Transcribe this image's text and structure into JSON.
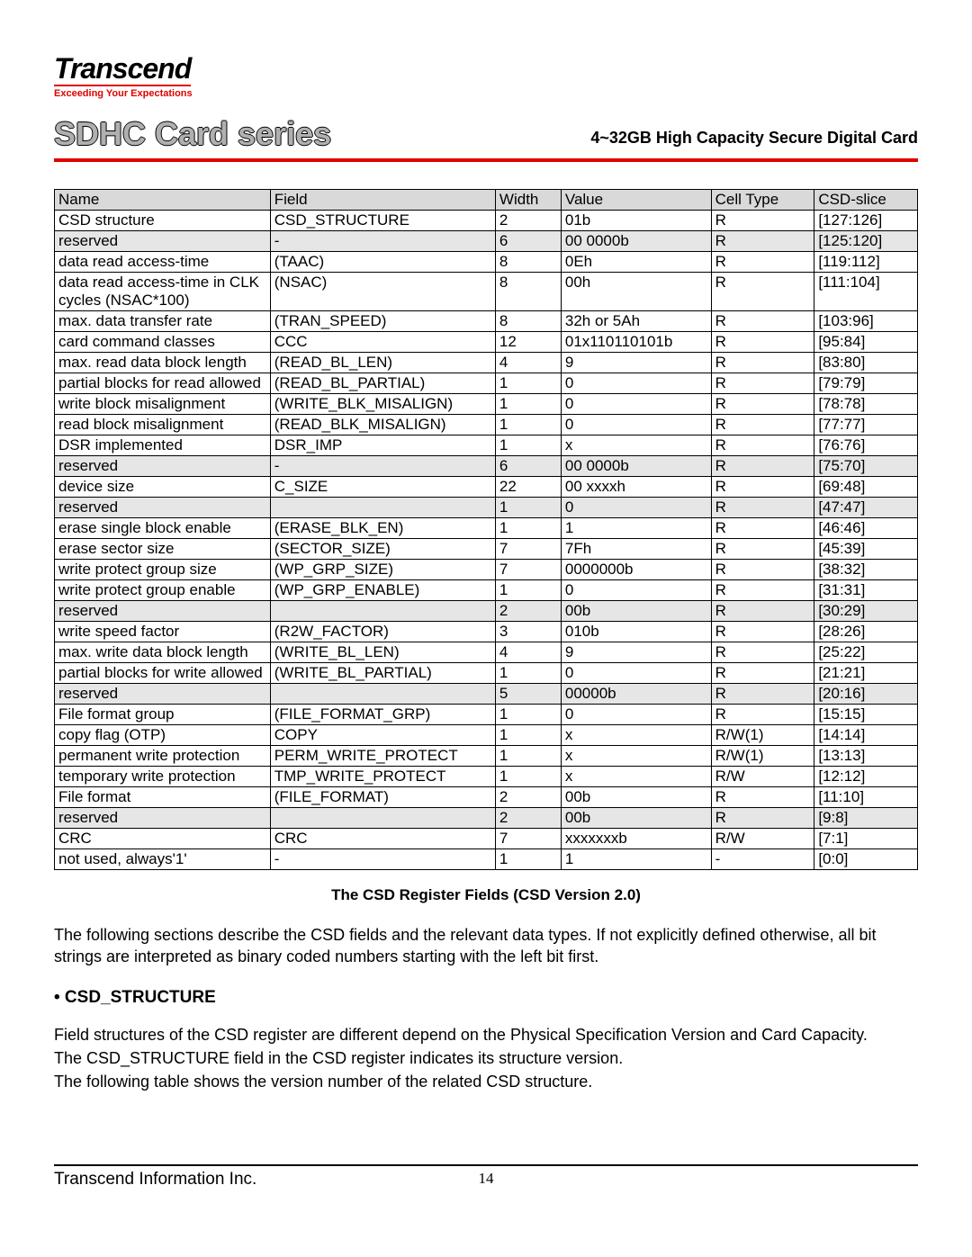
{
  "brand": {
    "name": "Transcend",
    "tagline": "Exceeding Your Expectations"
  },
  "header": {
    "series_title": "SDHC Card series",
    "subtitle": "4~32GB High Capacity Secure Digital Card"
  },
  "table": {
    "headers": [
      "Name",
      "Field",
      "Width",
      "Value",
      "Cell Type",
      "CSD-slice"
    ],
    "rows": [
      {
        "shaded": false,
        "cells": [
          "CSD structure",
          "CSD_STRUCTURE",
          "2",
          "01b",
          "R",
          "[127:126]"
        ]
      },
      {
        "shaded": true,
        "cells": [
          "reserved",
          "-",
          "6",
          "00 0000b",
          "R",
          "[125:120]"
        ]
      },
      {
        "shaded": false,
        "cells": [
          "data read access-time",
          "(TAAC)",
          "8",
          "0Eh",
          "R",
          "[119:112]"
        ]
      },
      {
        "shaded": false,
        "cells": [
          "data read access-time in CLK cycles (NSAC*100)",
          "(NSAC)",
          "8",
          "00h",
          "R",
          "[111:104]"
        ]
      },
      {
        "shaded": false,
        "cells": [
          "max. data transfer rate",
          "(TRAN_SPEED)",
          "8",
          "32h or 5Ah",
          "R",
          "[103:96]"
        ]
      },
      {
        "shaded": false,
        "cells": [
          "card command classes",
          "CCC",
          "12",
          "01x110110101b",
          "R",
          "[95:84]"
        ]
      },
      {
        "shaded": false,
        "cells": [
          "max. read data block length",
          "(READ_BL_LEN)",
          "4",
          "9",
          "R",
          "[83:80]"
        ]
      },
      {
        "shaded": false,
        "cells": [
          "partial blocks for read allowed",
          "(READ_BL_PARTIAL)",
          "1",
          "0",
          "R",
          "[79:79]"
        ]
      },
      {
        "shaded": false,
        "cells": [
          "write block misalignment",
          "(WRITE_BLK_MISALIGN)",
          "1",
          "0",
          "R",
          "[78:78]"
        ]
      },
      {
        "shaded": false,
        "cells": [
          "read block misalignment",
          "(READ_BLK_MISALIGN)",
          "1",
          "0",
          "R",
          "[77:77]"
        ]
      },
      {
        "shaded": false,
        "cells": [
          "DSR implemented",
          "DSR_IMP",
          "1",
          "x",
          "R",
          "[76:76]"
        ]
      },
      {
        "shaded": true,
        "cells": [
          "reserved",
          "-",
          "6",
          "00 0000b",
          "R",
          "[75:70]"
        ]
      },
      {
        "shaded": false,
        "cells": [
          "device size",
          "C_SIZE",
          "22",
          "00 xxxxh",
          "R",
          "[69:48]"
        ]
      },
      {
        "shaded": true,
        "cells": [
          "reserved",
          "",
          "1",
          "0",
          "R",
          "[47:47]"
        ]
      },
      {
        "shaded": false,
        "cells": [
          "erase single block enable",
          "(ERASE_BLK_EN)",
          "1",
          "1",
          "R",
          "[46:46]"
        ]
      },
      {
        "shaded": false,
        "cells": [
          "erase sector size",
          "(SECTOR_SIZE)",
          "7",
          "7Fh",
          "R",
          "[45:39]"
        ]
      },
      {
        "shaded": false,
        "cells": [
          "write protect group size",
          "(WP_GRP_SIZE)",
          "7",
          "0000000b",
          "R",
          "[38:32]"
        ]
      },
      {
        "shaded": false,
        "cells": [
          "write protect group enable",
          "(WP_GRP_ENABLE)",
          "1",
          "0",
          "R",
          "[31:31]"
        ]
      },
      {
        "shaded": true,
        "cells": [
          "reserved",
          "",
          "2",
          "00b",
          "R",
          "[30:29]"
        ]
      },
      {
        "shaded": false,
        "cells": [
          "write speed factor",
          "(R2W_FACTOR)",
          "3",
          "010b",
          "R",
          "[28:26]"
        ]
      },
      {
        "shaded": false,
        "cells": [
          "max. write data block length",
          "(WRITE_BL_LEN)",
          "4",
          "9",
          "R",
          "[25:22]"
        ]
      },
      {
        "shaded": false,
        "cells": [
          "partial blocks for write allowed",
          "(WRITE_BL_PARTIAL)",
          "1",
          "0",
          "R",
          "[21:21]"
        ]
      },
      {
        "shaded": true,
        "cells": [
          "reserved",
          "",
          "5",
          "00000b",
          "R",
          "[20:16]"
        ]
      },
      {
        "shaded": false,
        "cells": [
          "File format group",
          "(FILE_FORMAT_GRP)",
          "1",
          "0",
          "R",
          "[15:15]"
        ]
      },
      {
        "shaded": false,
        "cells": [
          "copy flag (OTP)",
          "COPY",
          "1",
          "x",
          "R/W(1)",
          "[14:14]"
        ]
      },
      {
        "shaded": false,
        "cells": [
          "permanent write protection",
          "PERM_WRITE_PROTECT",
          "1",
          "x",
          "R/W(1)",
          "[13:13]"
        ]
      },
      {
        "shaded": false,
        "cells": [
          "temporary write protection",
          "TMP_WRITE_PROTECT",
          "1",
          "x",
          "R/W",
          "[12:12]"
        ]
      },
      {
        "shaded": false,
        "cells": [
          "File format",
          "(FILE_FORMAT)",
          "2",
          "00b",
          "R",
          "[11:10]"
        ]
      },
      {
        "shaded": true,
        "cells": [
          "reserved",
          "",
          "2",
          "00b",
          "R",
          "[9:8]"
        ]
      },
      {
        "shaded": false,
        "cells": [
          "CRC",
          "CRC",
          "7",
          "xxxxxxxb",
          "R/W",
          "[7:1]"
        ]
      },
      {
        "shaded": false,
        "cells": [
          "not used, always'1'",
          "-",
          "1",
          "1",
          "-",
          "[0:0]"
        ]
      }
    ]
  },
  "caption": "The CSD Register Fields (CSD Version 2.0)",
  "paragraph1": "The following sections describe the CSD fields and the relevant data types. If not explicitly defined otherwise, all bit strings are interpreted as binary coded numbers starting with the left bit first.",
  "section_header": "• CSD_STRUCTURE",
  "section_body_lines": [
    "Field structures of the CSD register are different depend on the Physical Specification Version and Card Capacity.",
    "The CSD_STRUCTURE field in the CSD register indicates its structure version.",
    "The following table shows the version number of the related CSD structure."
  ],
  "footer": {
    "company": "Transcend Information Inc.",
    "page_number": "14"
  }
}
